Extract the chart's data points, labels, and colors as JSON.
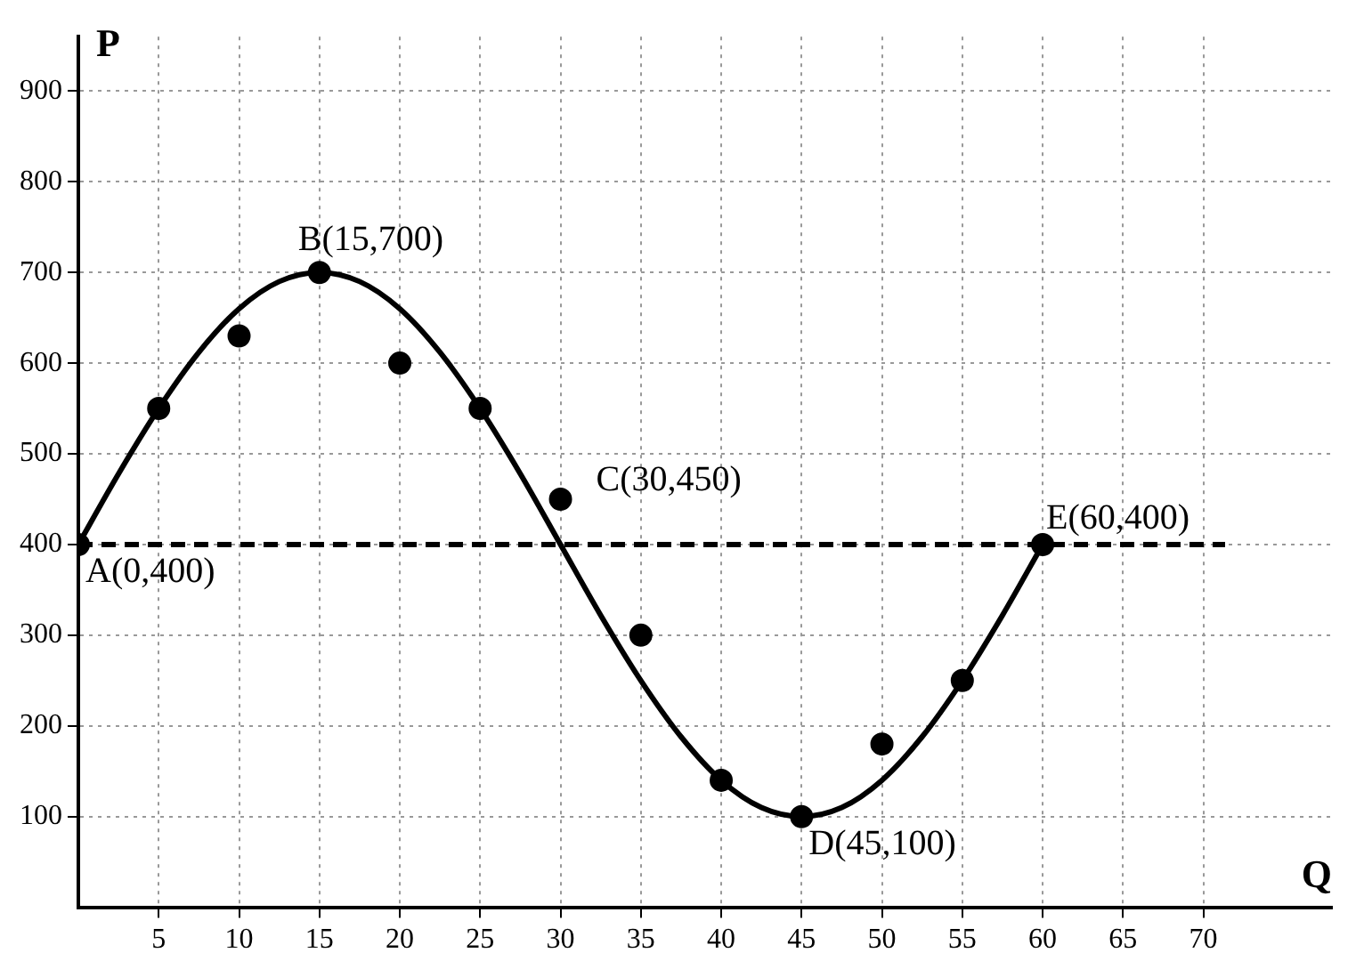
{
  "chart_data": {
    "type": "scatter",
    "xlabel": "Q",
    "ylabel": "P",
    "xlim": [
      0,
      78
    ],
    "ylim": [
      0,
      960
    ],
    "xticks": [
      5,
      10,
      15,
      20,
      25,
      30,
      35,
      40,
      45,
      50,
      55,
      60,
      65,
      70
    ],
    "yticks": [
      100,
      200,
      300,
      400,
      500,
      600,
      700,
      800,
      900
    ],
    "grid": true,
    "legend": false,
    "marker": "circle",
    "series": [
      {
        "type": "line",
        "color": "#000000",
        "marker": "none",
        "line_style": "solid",
        "x": [
          0,
          2.5,
          5,
          7.5,
          10,
          12.5,
          15,
          17.5,
          20,
          22.5,
          25,
          27.5,
          30,
          32.5,
          35,
          37.5,
          40,
          42.5,
          45,
          47.5,
          50,
          52.5,
          55,
          57.5,
          60
        ],
        "values": [
          400,
          478,
          550,
          612,
          660,
          690,
          700,
          690,
          660,
          612,
          550,
          478,
          400,
          322,
          250,
          188,
          140,
          110,
          100,
          110,
          140,
          188,
          250,
          322,
          400
        ]
      },
      {
        "type": "scatter",
        "color": "#000000",
        "x": [
          0,
          5,
          10,
          15,
          20,
          25,
          30,
          35,
          40,
          45,
          50,
          55,
          60
        ],
        "values": [
          400,
          550,
          630,
          700,
          600,
          550,
          450,
          300,
          140,
          100,
          180,
          250,
          400
        ]
      }
    ],
    "ref_lines": [
      {
        "axis": "y",
        "value": 400,
        "line_style": "dashed",
        "color": "#000000"
      }
    ],
    "annotations": [
      {
        "text": "A(0,400)",
        "x": 0,
        "y": 400
      },
      {
        "text": "B(15,700)",
        "x": 15,
        "y": 700
      },
      {
        "text": "C(30,450)",
        "x": 30,
        "y": 450
      },
      {
        "text": "D(45,100)",
        "x": 45,
        "y": 100
      },
      {
        "text": "E(60,400)",
        "x": 60,
        "y": 400
      }
    ]
  }
}
